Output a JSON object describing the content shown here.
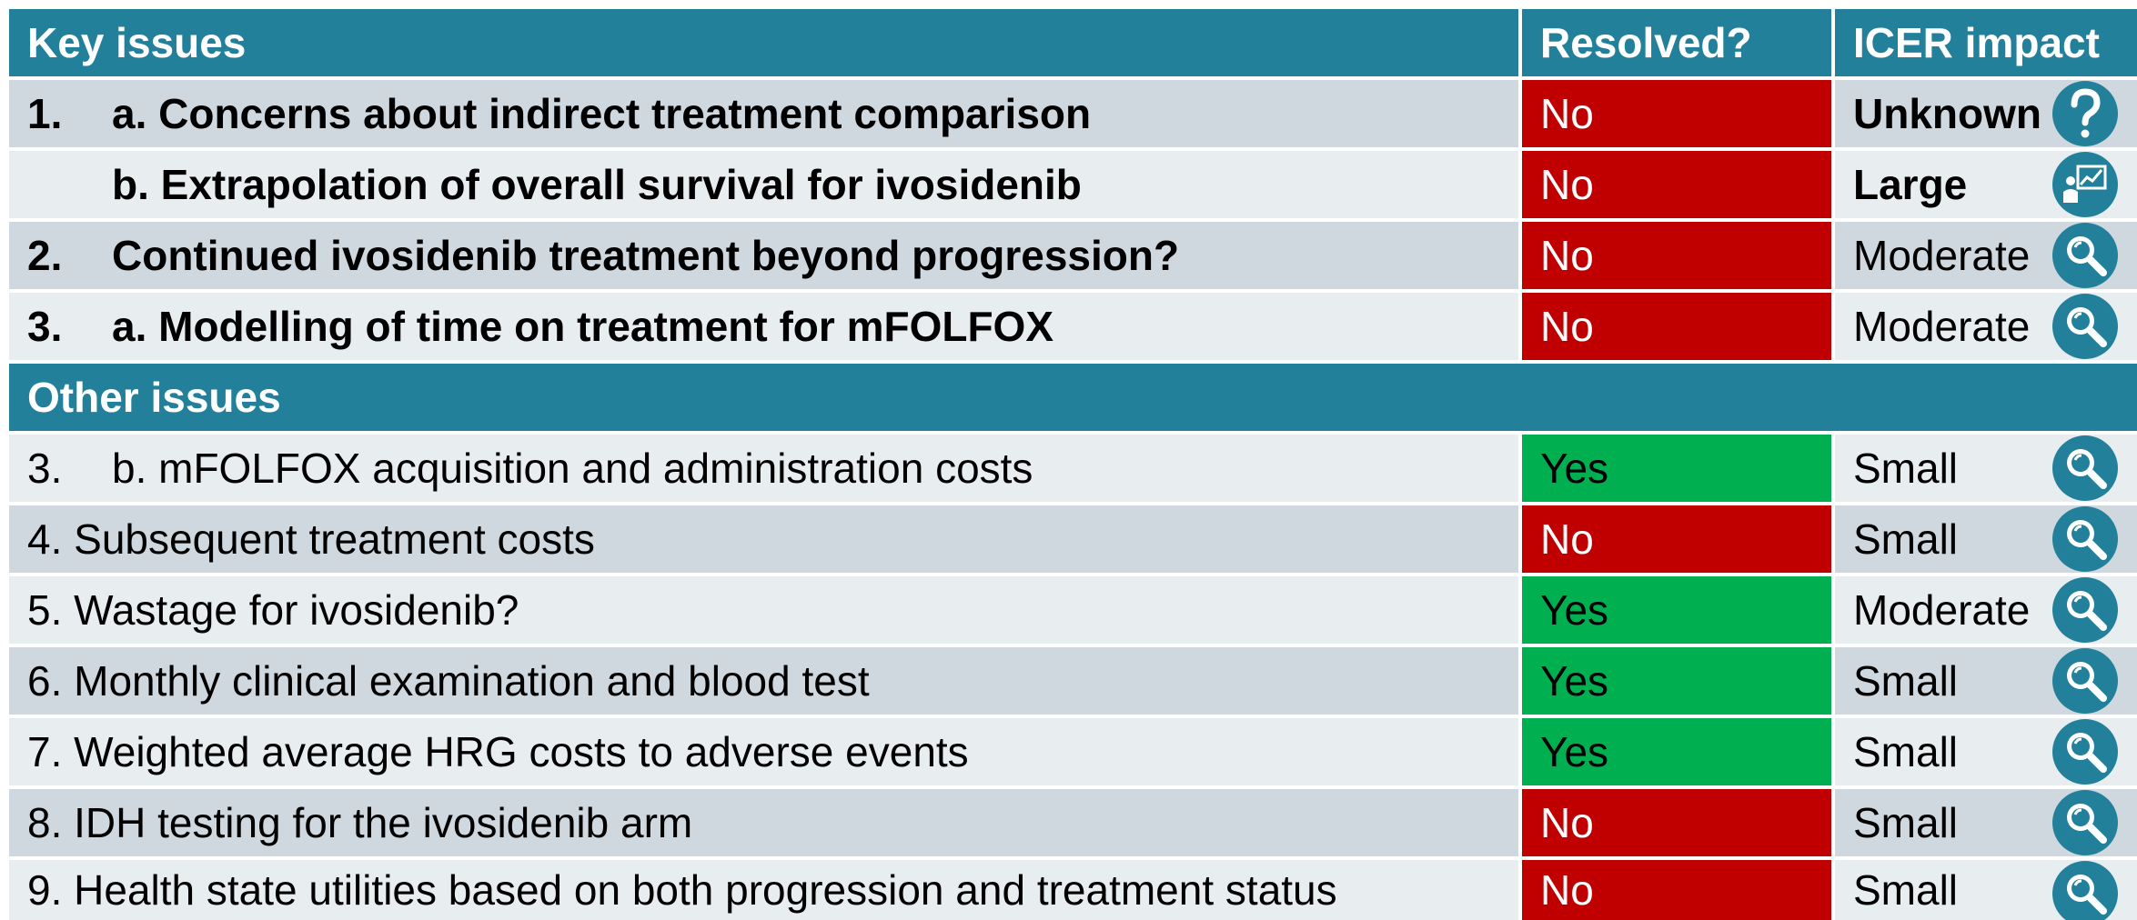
{
  "header": {
    "issue": "Key issues",
    "resolved": "Resolved?",
    "impact": "ICER impact"
  },
  "key_rows": [
    {
      "number": "1.",
      "label": "a. Concerns about indirect treatment comparison",
      "resolved": "No",
      "impact": "Unknown",
      "icon": "question"
    },
    {
      "label": "b. Extrapolation of overall survival for ivosidenib",
      "resolved": "No",
      "impact": "Large",
      "icon": "chart"
    },
    {
      "number": "2.",
      "label": "Continued ivosidenib treatment beyond progression?",
      "resolved": "No",
      "impact": "Moderate",
      "icon": "search"
    },
    {
      "number": "3.",
      "label": "a. Modelling of time on treatment for mFOLFOX",
      "resolved": "No",
      "impact": "Moderate",
      "icon": "search"
    }
  ],
  "other_heading": "Other issues",
  "other_rows": [
    {
      "number": "3.",
      "label": "b. mFOLFOX acquisition and administration costs",
      "resolved": "Yes",
      "impact": "Small",
      "icon": "search"
    },
    {
      "label": "4. Subsequent treatment costs",
      "resolved": "No",
      "impact": "Small",
      "icon": "search"
    },
    {
      "label": "5. Wastage for ivosidenib?",
      "resolved": "Yes",
      "impact": "Moderate",
      "icon": "search"
    },
    {
      "label": "6. Monthly clinical examination and blood test",
      "resolved": "Yes",
      "impact": "Small",
      "icon": "search"
    },
    {
      "label": "7. Weighted average HRG costs to adverse events",
      "resolved": "Yes",
      "impact": "Small",
      "icon": "search"
    },
    {
      "label": "8. IDH testing for the ivosidenib arm",
      "resolved": "No",
      "impact": "Small",
      "icon": "search"
    },
    {
      "label": "9. Health state utilities based on both progression and treatment status",
      "resolved": "No",
      "impact": "Small",
      "icon": "search"
    }
  ]
}
